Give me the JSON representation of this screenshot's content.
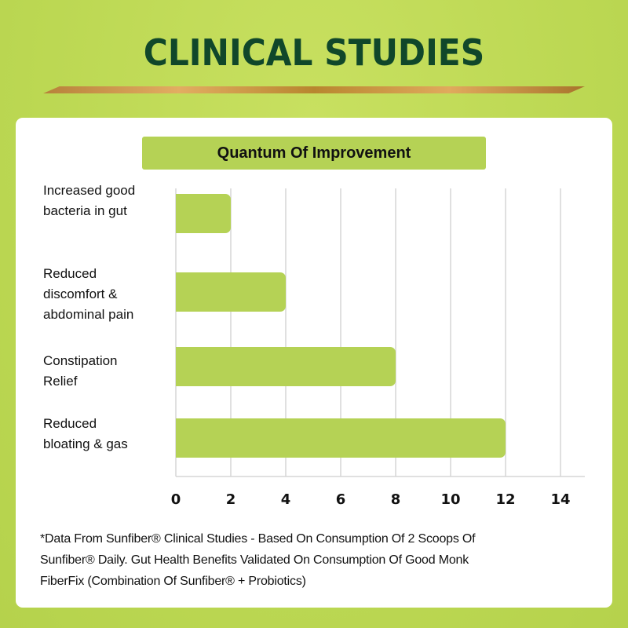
{
  "header": {
    "title": "CLINICAL STUDIES"
  },
  "chart_data": {
    "type": "bar",
    "orientation": "horizontal",
    "title": "Quantum Of Improvement",
    "categories": [
      "Increased good bacteria in gut",
      "Reduced discomfort & abdominal pain",
      "Constipation Relief",
      "Reduced bloating & gas"
    ],
    "category_lines": [
      [
        "Increased good",
        "bacteria in gut"
      ],
      [
        "Reduced",
        "discomfort &",
        "abdominal pain"
      ],
      [
        "Constipation",
        "Relief"
      ],
      [
        "Reduced",
        "bloating & gas"
      ]
    ],
    "values": [
      2,
      4,
      8,
      12
    ],
    "xlim": [
      0,
      14
    ],
    "xticks": [
      "0",
      "2",
      "4",
      "6",
      "8",
      "10",
      "12",
      "14"
    ],
    "grid": true,
    "bar_color": "#b5d255"
  },
  "footnote": {
    "lines": [
      "*Data From Sunfiber® Clinical Studies - Based On Consumption Of 2 Scoops Of",
      "Sunfiber® Daily. Gut Health Benefits Validated On Consumption Of Good Monk",
      "FiberFix (Combination Of Sunfiber® + Probiotics)"
    ]
  },
  "colors": {
    "background": "#bcd853",
    "title": "#10472a",
    "accent_bar": "#d4a055"
  }
}
